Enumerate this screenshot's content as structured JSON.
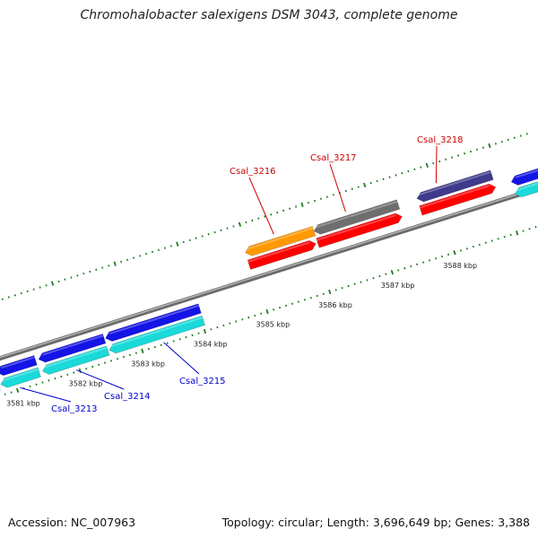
{
  "header": {
    "title": "Chromohalobacter salexigens DSM 3043, complete genome"
  },
  "footer": {
    "accession": "Accession: NC_007963",
    "topology": "Topology: circular; Length: 3,696,649 bp; Genes: 3,388"
  },
  "colors": {
    "backbone": "#8c8c8c",
    "tick_major": "#1f7a1f",
    "tick_minor": "#1f7a1f",
    "forward_cds": "#ff0000",
    "forward_gene_orange": "#ff9900",
    "forward_gene_gray": "#6e6e6e",
    "forward_gene_purple": "#3f3a8c",
    "reverse_cds": "#1414e6",
    "reverse_gene": "#19d9d9",
    "label_forward": "#cc0000",
    "label_reverse": "#0000cc"
  },
  "scale": {
    "ticks": [
      {
        "kbp": 3581,
        "label": "3581 kbp"
      },
      {
        "kbp": 3582,
        "label": "3582 kbp"
      },
      {
        "kbp": 3583,
        "label": "3583 kbp"
      },
      {
        "kbp": 3584,
        "label": "3584 kbp"
      },
      {
        "kbp": 3585,
        "label": "3585 kbp"
      },
      {
        "kbp": 3586,
        "label": "3586 kbp"
      },
      {
        "kbp": 3587,
        "label": "3587 kbp"
      },
      {
        "kbp": 3588,
        "label": "3588 kbp"
      }
    ]
  },
  "genes": {
    "forward": [
      {
        "label": "Csal_3216",
        "color": "forward_gene_orange"
      },
      {
        "label": "Csal_3217",
        "color": "forward_gene_gray"
      },
      {
        "label": "Csal_3218",
        "color": "forward_gene_purple"
      }
    ],
    "reverse": [
      {
        "label": "Csal_3213",
        "color": "reverse_gene"
      },
      {
        "label": "Csal_3214",
        "color": "reverse_gene"
      },
      {
        "label": "Csal_3215",
        "color": "reverse_gene"
      }
    ]
  }
}
